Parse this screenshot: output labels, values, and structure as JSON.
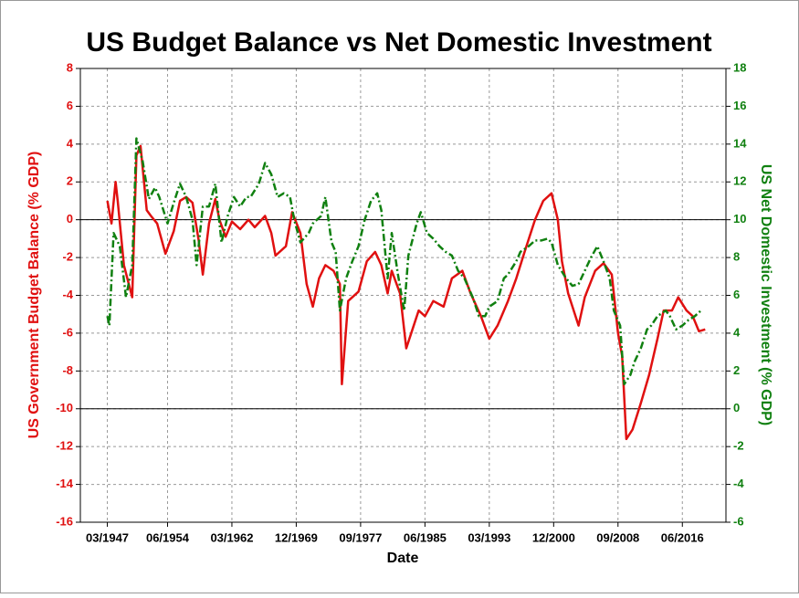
{
  "chart_data": {
    "type": "line",
    "title": "US Budget Balance vs Net Domestic Investment",
    "xlabel": "Date",
    "ylabel": "US Government Budget Balance (% GDP)",
    "y2label": "US Net Domestic Investment (% GDP)",
    "xlim": [
      "12/1943",
      "09/2021"
    ],
    "xticks": [
      "03/1947",
      "06/1954",
      "03/1962",
      "12/1969",
      "09/1977",
      "06/1985",
      "03/1993",
      "12/2000",
      "09/2008",
      "06/2016"
    ],
    "ylim": [
      -16,
      8
    ],
    "yticks": [
      -16,
      -14,
      -12,
      -10,
      -8,
      -6,
      -4,
      -2,
      0,
      2,
      4,
      6,
      8
    ],
    "y2lim": [
      -6,
      18
    ],
    "y2ticks": [
      -6,
      -4,
      -2,
      0,
      2,
      4,
      6,
      8,
      10,
      12,
      14,
      16,
      18
    ],
    "grid": true,
    "series": [
      {
        "name": "US Government Budget Balance",
        "color": "#e01010",
        "style": "solid",
        "axis": "y",
        "x": [
          "03/1947",
          "09/1947",
          "03/1948",
          "06/1948",
          "03/1949",
          "03/1950",
          "09/1950",
          "03/1951",
          "12/1951",
          "06/1952",
          "03/1953",
          "03/1954",
          "03/1955",
          "12/1955",
          "09/1956",
          "06/1957",
          "03/1958",
          "09/1958",
          "06/1959",
          "03/1960",
          "09/1960",
          "06/1961",
          "03/1962",
          "03/1963",
          "03/1964",
          "12/1964",
          "03/1966",
          "12/1966",
          "06/1967",
          "09/1968",
          "06/1969",
          "06/1970",
          "03/1971",
          "12/1971",
          "09/1972",
          "06/1973",
          "06/1974",
          "03/1975",
          "06/1975",
          "03/1976",
          "06/1977",
          "06/1978",
          "06/1979",
          "03/1980",
          "12/1980",
          "06/1981",
          "06/1982",
          "03/1983",
          "12/1983",
          "09/1984",
          "06/1985",
          "06/1986",
          "09/1987",
          "09/1988",
          "12/1989",
          "12/1990",
          "03/1992",
          "03/1993",
          "03/1994",
          "06/1995",
          "06/1996",
          "06/1997",
          "09/1998",
          "09/1999",
          "09/2000",
          "06/2001",
          "12/2001",
          "09/2002",
          "12/2003",
          "09/2004",
          "12/2005",
          "12/2006",
          "12/2007",
          "09/2008",
          "03/2009",
          "09/2009",
          "06/2010",
          "06/2011",
          "06/2012",
          "06/2013",
          "03/2014",
          "03/2015",
          "12/2015",
          "12/2016",
          "09/2017",
          "06/2018",
          "03/2019"
        ],
        "values": [
          1.0,
          -0.2,
          2.0,
          1.0,
          -2.4,
          -4.1,
          3.4,
          3.9,
          0.5,
          0.2,
          -0.2,
          -1.8,
          -0.6,
          1.0,
          1.2,
          0.9,
          -1.1,
          -2.9,
          -0.2,
          1.1,
          0,
          -0.9,
          -0.1,
          -0.5,
          0,
          -0.4,
          0.2,
          -0.7,
          -1.9,
          -1.4,
          0.4,
          -0.7,
          -3.4,
          -4.6,
          -3.1,
          -2.4,
          -2.7,
          -3.4,
          -8.7,
          -4.3,
          -3.8,
          -2.2,
          -1.7,
          -2.4,
          -3.9,
          -2.7,
          -3.9,
          -6.8,
          -5.8,
          -4.8,
          -5.1,
          -4.3,
          -4.6,
          -3.1,
          -2.7,
          -3.9,
          -5.1,
          -6.3,
          -5.6,
          -4.3,
          -3.1,
          -1.7,
          0,
          1.0,
          1.4,
          0,
          -2.2,
          -3.9,
          -5.6,
          -4.1,
          -2.7,
          -2.3,
          -2.9,
          -6.0,
          -7.2,
          -11.6,
          -11.1,
          -9.7,
          -8.2,
          -6.3,
          -4.8,
          -4.8,
          -4.1,
          -4.8,
          -5.1,
          -5.9,
          -5.8
        ]
      },
      {
        "name": "US Net Domestic Investment",
        "color": "#108010",
        "style": "dashdot",
        "axis": "y2",
        "x": [
          "03/1947",
          "06/1947",
          "12/1947",
          "09/1948",
          "06/1949",
          "03/1950",
          "09/1950",
          "06/1951",
          "03/1952",
          "12/1952",
          "06/1953",
          "06/1954",
          "03/1955",
          "12/1955",
          "09/1956",
          "06/1957",
          "12/1957",
          "09/1958",
          "06/1959",
          "03/1960",
          "12/1960",
          "09/1961",
          "06/1962",
          "03/1963",
          "12/1963",
          "06/1964",
          "06/1965",
          "03/1966",
          "12/1966",
          "09/1967",
          "06/1968",
          "03/1969",
          "09/1969",
          "06/1970",
          "06/1971",
          "12/1971",
          "12/1972",
          "06/1973",
          "03/1974",
          "09/1974",
          "03/1975",
          "12/1975",
          "09/1976",
          "06/1977",
          "03/1978",
          "12/1978",
          "09/1979",
          "03/1980",
          "12/1980",
          "06/1981",
          "03/1982",
          "12/1982",
          "06/1983",
          "06/1984",
          "12/1984",
          "09/1985",
          "06/1986",
          "03/1987",
          "12/1987",
          "09/1988",
          "06/1989",
          "03/1990",
          "03/1991",
          "12/1991",
          "09/1992",
          "03/1993",
          "03/1994",
          "12/1994",
          "06/1995",
          "06/1996",
          "12/1996",
          "12/1997",
          "09/1998",
          "06/1999",
          "03/2000",
          "09/2000",
          "06/2001",
          "06/2002",
          "03/2003",
          "12/2003",
          "09/2004",
          "06/2005",
          "03/2006",
          "12/2006",
          "09/2007",
          "03/2008",
          "12/2008",
          "06/2009",
          "03/2010",
          "09/2010",
          "06/2011",
          "03/2012",
          "09/2012",
          "06/2013",
          "06/2014",
          "12/2014",
          "09/2015",
          "06/2016",
          "03/2017",
          "12/2017",
          "09/2018"
        ],
        "values": [
          4.9,
          4.4,
          9.3,
          8.6,
          5.9,
          7.6,
          14.3,
          13.1,
          11.1,
          11.7,
          11.2,
          9.8,
          10.9,
          11.9,
          11.2,
          10,
          7.6,
          10.7,
          10.7,
          11.9,
          8.8,
          10.2,
          11.2,
          10.7,
          11.2,
          11.2,
          11.9,
          13.0,
          12.4,
          11.2,
          11.4,
          11.2,
          10.0,
          8.8,
          9.3,
          9.8,
          10.2,
          11.2,
          8.8,
          8.3,
          5.2,
          6.9,
          7.8,
          8.6,
          10,
          11.0,
          11.4,
          10.5,
          6.9,
          9.3,
          7.1,
          5.2,
          8.1,
          9.8,
          10.4,
          9.3,
          9.0,
          8.6,
          8.3,
          8.1,
          7.3,
          6.9,
          5.9,
          4.9,
          4.9,
          5.4,
          5.7,
          6.9,
          7.1,
          7.8,
          8.3,
          8.6,
          8.9,
          8.9,
          9.0,
          8.8,
          7.6,
          6.9,
          6.5,
          6.6,
          7.3,
          8.0,
          8.6,
          7.8,
          6.9,
          5.2,
          4.4,
          1.3,
          1.8,
          2.5,
          3.2,
          4.2,
          4.4,
          4.9,
          5.2,
          4.9,
          4.2,
          4.4,
          4.7,
          4.9,
          5.2
        ]
      }
    ]
  }
}
